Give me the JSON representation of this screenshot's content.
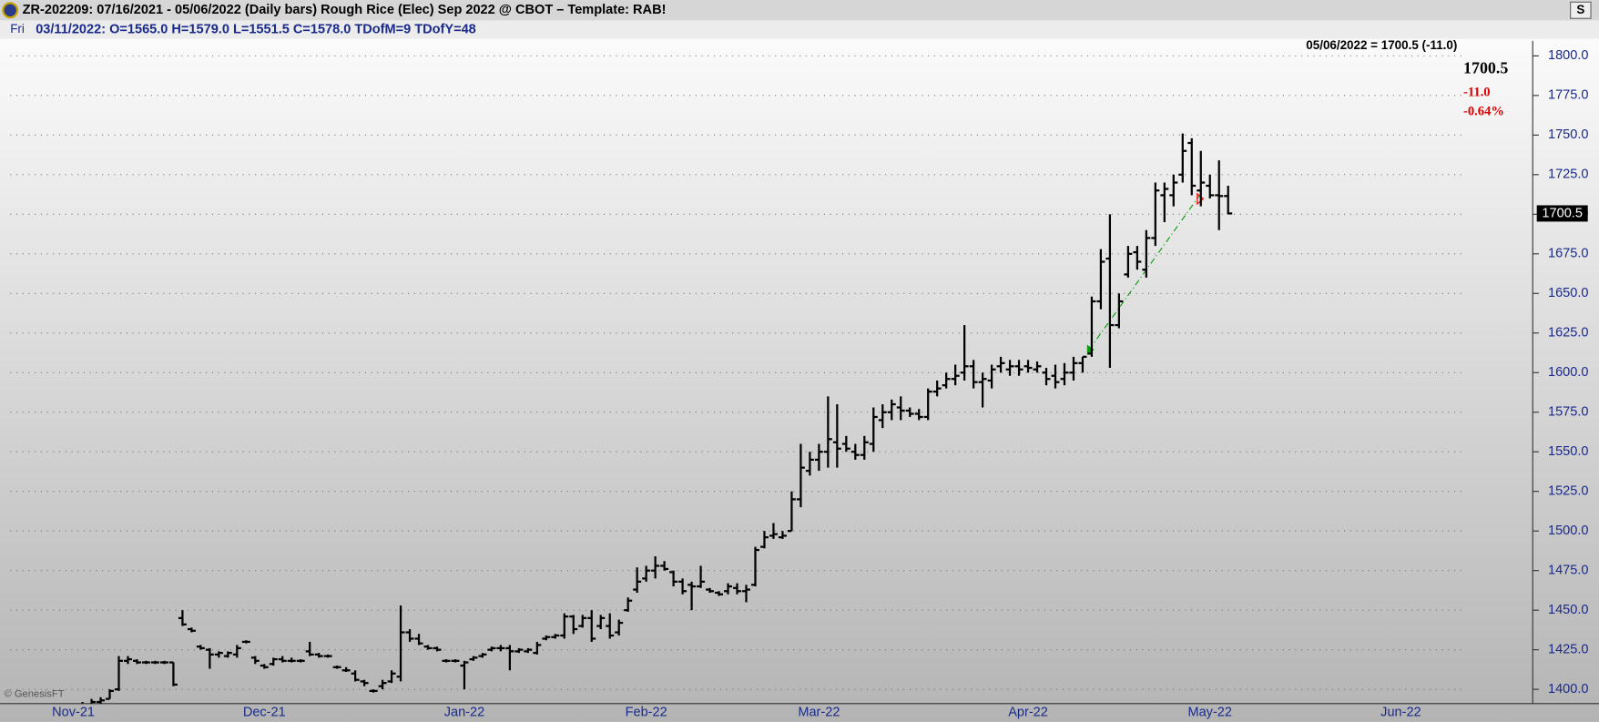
{
  "header": {
    "title": "ZR-202209:  07/16/2021 - 05/06/2022  (Daily bars)   Rough Rice (Elec) Sep 2022 @ CBOT  –  Template: RAB!",
    "button": "S",
    "day": "Fri",
    "quote": "03/11/2022:  O=1565.0  H=1579.0  L=1551.5  C=1578.0  TDofM=9  TDofY=48"
  },
  "chart_data": {
    "type": "ohlc",
    "color": "#000000",
    "grid": true,
    "ylim": [
      1391,
      1809.5
    ],
    "yticks": [
      {
        "value": 1400,
        "label": "1400.0"
      },
      {
        "value": 1425,
        "label": "1425.0"
      },
      {
        "value": 1450,
        "label": "1450.0"
      },
      {
        "value": 1475,
        "label": "1475.0"
      },
      {
        "value": 1500,
        "label": "1500.0"
      },
      {
        "value": 1525,
        "label": "1525.0"
      },
      {
        "value": 1550,
        "label": "1550.0"
      },
      {
        "value": 1575,
        "label": "1575.0"
      },
      {
        "value": 1600,
        "label": "1600.0"
      },
      {
        "value": 1625,
        "label": "1625.0"
      },
      {
        "value": 1650,
        "label": "1650.0"
      },
      {
        "value": 1675,
        "label": "1675.0"
      },
      {
        "value": 1700,
        "label": "1700.0"
      },
      {
        "value": 1725,
        "label": "1725.0"
      },
      {
        "value": 1750,
        "label": "1750.0"
      },
      {
        "value": 1775,
        "label": "1775.0"
      },
      {
        "value": 1800,
        "label": "1800.0"
      }
    ],
    "annotations": {
      "last_quote": "05/06/2022 = 1700.5 (-11.0)",
      "last": "1700.5",
      "change": "-11.0",
      "change_pct": "-0.64%",
      "price_tag": "1700.5",
      "credit": "© GenesisFT"
    },
    "categories": [
      "Nov-21",
      null,
      null,
      null,
      null,
      null,
      null,
      null,
      null,
      null,
      null,
      null,
      null,
      null,
      null,
      null,
      null,
      null,
      null,
      null,
      null,
      "Dec-21",
      null,
      null,
      null,
      null,
      null,
      null,
      null,
      null,
      null,
      null,
      null,
      null,
      null,
      null,
      null,
      null,
      null,
      null,
      null,
      null,
      null,
      "Jan-22",
      null,
      null,
      null,
      null,
      null,
      null,
      null,
      null,
      null,
      null,
      null,
      null,
      null,
      null,
      null,
      null,
      null,
      null,
      null,
      "Feb-22",
      null,
      null,
      null,
      null,
      null,
      null,
      null,
      null,
      null,
      null,
      null,
      null,
      null,
      null,
      null,
      null,
      null,
      null,
      "Mar-22",
      null,
      null,
      null,
      null,
      null,
      null,
      null,
      null,
      null,
      null,
      null,
      null,
      null,
      null,
      null,
      null,
      null,
      null,
      null,
      null,
      null,
      null,
      "Apr-22",
      null,
      null,
      null,
      null,
      null,
      null,
      null,
      null,
      null,
      null,
      null,
      null,
      null,
      null,
      null,
      null,
      null,
      null,
      null,
      "May-22",
      null,
      null,
      null,
      null,
      null,
      null,
      null,
      null,
      null,
      null,
      null,
      null,
      null,
      null,
      null,
      null,
      null,
      null,
      null,
      null,
      "Jun-22",
      null,
      null,
      null,
      null,
      null,
      null,
      null,
      null,
      null,
      null,
      null,
      null,
      null,
      null
    ],
    "open": [
      1385,
      1388,
      1390,
      1392,
      1394,
      1400,
      1418,
      1418,
      1417,
      1417,
      1417,
      1417,
      1445,
      1438,
      1427,
      1425,
      1422,
      1421,
      1422,
      1430,
      1420,
      1415,
      1416,
      1419,
      1418,
      1418,
      1424,
      1422,
      1421,
      1414,
      1412,
      1410,
      1405,
      1399,
      1402,
      1405,
      1408,
      1436,
      1432,
      1427,
      1426,
      1418,
      1418,
      1415,
      1419,
      1421,
      1425,
      1426,
      1426,
      1424,
      1424,
      1423,
      1432,
      1433,
      1434,
      1446,
      1440,
      1445,
      1440,
      1440,
      1436,
      1450,
      1463,
      1470,
      1475,
      1478,
      1474,
      1468,
      1466,
      1465,
      1463,
      1461,
      1462,
      1464,
      1462,
      1466,
      1490,
      1497,
      1496,
      1500,
      1520,
      1538,
      1545,
      1550,
      1556,
      1555,
      1550,
      1548,
      1555,
      1570,
      1575,
      1578,
      1576,
      1574,
      1572,
      1588,
      1592,
      1596,
      1600,
      1604,
      1594,
      1595,
      1604,
      1602,
      1604,
      1604,
      1602,
      1600,
      1598,
      1596,
      1600,
      1606,
      1612,
      1645,
      1672,
      1630,
      1662,
      1676,
      1665,
      1685,
      1712,
      1712,
      1725,
      1745,
      1715,
      1718,
      1712,
      1711.5,
      null,
      null,
      null,
      null,
      null,
      null,
      null,
      null,
      null,
      null,
      null,
      null,
      null,
      null,
      null,
      null,
      null,
      null,
      null,
      null,
      null,
      null,
      null,
      null,
      null,
      null,
      null,
      null,
      null,
      null,
      null,
      null,
      null
    ],
    "high": [
      1390,
      1392,
      1394,
      1395,
      1400,
      1421,
      1421,
      1419,
      1418,
      1418,
      1418,
      1417,
      1450,
      1439,
      1428,
      1426,
      1424,
      1424,
      1428,
      1431,
      1421,
      1416,
      1420,
      1421,
      1420,
      1419,
      1430,
      1423,
      1422,
      1415,
      1414,
      1412,
      1406,
      1400,
      1406,
      1412,
      1453,
      1438,
      1435,
      1428,
      1427,
      1419,
      1419,
      1418,
      1421,
      1423,
      1427,
      1428,
      1428,
      1426,
      1426,
      1430,
      1434,
      1435,
      1448,
      1447,
      1447,
      1450,
      1447,
      1448,
      1444,
      1458,
      1477,
      1478,
      1484,
      1481,
      1475,
      1470,
      1468,
      1478,
      1464,
      1462,
      1467,
      1467,
      1466,
      1490,
      1500,
      1505,
      1500,
      1525,
      1555,
      1550,
      1555,
      1585,
      1580,
      1560,
      1555,
      1560,
      1578,
      1580,
      1583,
      1585,
      1578,
      1577,
      1590,
      1595,
      1600,
      1605,
      1630,
      1608,
      1600,
      1605,
      1610,
      1608,
      1608,
      1608,
      1607,
      1603,
      1605,
      1606,
      1610,
      1610,
      1648,
      1678,
      1700,
      1650,
      1680,
      1680,
      1690,
      1720,
      1720,
      1725,
      1751,
      1748,
      1740,
      1725,
      1734,
      1718,
      null,
      null,
      null,
      null,
      null,
      null,
      null,
      null,
      null,
      null,
      null,
      null,
      null,
      null,
      null,
      null,
      null,
      null,
      null,
      null,
      null,
      null,
      null,
      null,
      null,
      null,
      null,
      null,
      null,
      null,
      null,
      null,
      null
    ],
    "low": [
      1382,
      1385,
      1388,
      1390,
      1394,
      1399,
      1416,
      1416,
      1416,
      1416,
      1416,
      1402,
      1440,
      1436,
      1425,
      1413,
      1420,
      1420,
      1420,
      1429,
      1416,
      1413,
      1415,
      1417,
      1417,
      1417,
      1421,
      1420,
      1420,
      1413,
      1411,
      1405,
      1402,
      1398,
      1400,
      1404,
      1405,
      1430,
      1428,
      1425,
      1424,
      1417,
      1417,
      1400,
      1418,
      1420,
      1424,
      1424,
      1412,
      1423,
      1423,
      1422,
      1431,
      1432,
      1432,
      1435,
      1439,
      1430,
      1438,
      1432,
      1434,
      1449,
      1461,
      1468,
      1470,
      1475,
      1465,
      1460,
      1450,
      1464,
      1461,
      1459,
      1460,
      1460,
      1455,
      1465,
      1489,
      1495,
      1495,
      1500,
      1515,
      1535,
      1538,
      1540,
      1540,
      1550,
      1545,
      1545,
      1550,
      1565,
      1570,
      1570,
      1572,
      1570,
      1570,
      1585,
      1590,
      1592,
      1595,
      1590,
      1578,
      1590,
      1600,
      1598,
      1598,
      1600,
      1600,
      1592,
      1590,
      1592,
      1595,
      1600,
      1610,
      1640,
      1603,
      1628,
      1660,
      1665,
      1660,
      1680,
      1695,
      1705,
      1720,
      1712,
      1705,
      1710,
      1690,
      1700,
      null,
      null,
      null,
      null,
      null,
      null,
      null,
      null,
      null,
      null,
      null,
      null,
      null,
      null,
      null,
      null,
      null,
      null,
      null,
      null,
      null,
      null,
      null,
      null,
      null,
      null,
      null,
      null,
      null,
      null,
      null,
      null,
      null
    ],
    "close": [
      1388,
      1390,
      1392,
      1393,
      1399,
      1418,
      1419,
      1417,
      1417,
      1417,
      1417,
      1403,
      1441,
      1437,
      1426,
      1422,
      1423,
      1423,
      1426,
      1430,
      1418,
      1414,
      1419,
      1418,
      1418,
      1418,
      1422,
      1421,
      1421,
      1414,
      1412,
      1406,
      1404,
      1399,
      1404,
      1410,
      1436,
      1432,
      1429,
      1426,
      1425,
      1418,
      1418,
      1417,
      1420,
      1422,
      1426,
      1426,
      1424,
      1425,
      1425,
      1428,
      1433,
      1434,
      1446,
      1438,
      1445,
      1432,
      1445,
      1434,
      1442,
      1456,
      1468,
      1475,
      1478,
      1476,
      1468,
      1462,
      1465,
      1468,
      1462,
      1460,
      1465,
      1462,
      1463,
      1488,
      1496,
      1498,
      1497,
      1520,
      1540,
      1545,
      1550,
      1558,
      1552,
      1552,
      1548,
      1556,
      1572,
      1575,
      1580,
      1576,
      1574,
      1572,
      1588,
      1590,
      1596,
      1598,
      1604,
      1594,
      1596,
      1602,
      1606,
      1604,
      1602,
      1603,
      1604,
      1596,
      1594,
      1600,
      1606,
      1610,
      1645,
      1670,
      1630,
      1645,
      1675,
      1670,
      1685,
      1715,
      1716,
      1720,
      1740,
      1718,
      1720,
      1712,
      1711.5,
      1700.5,
      null,
      null,
      null,
      null,
      null,
      null,
      null,
      null,
      null,
      null,
      null,
      null,
      null,
      null,
      null,
      null,
      null,
      null,
      null,
      null,
      null,
      null,
      null,
      null,
      null,
      null,
      null,
      null,
      null,
      null,
      null,
      null,
      null
    ]
  }
}
